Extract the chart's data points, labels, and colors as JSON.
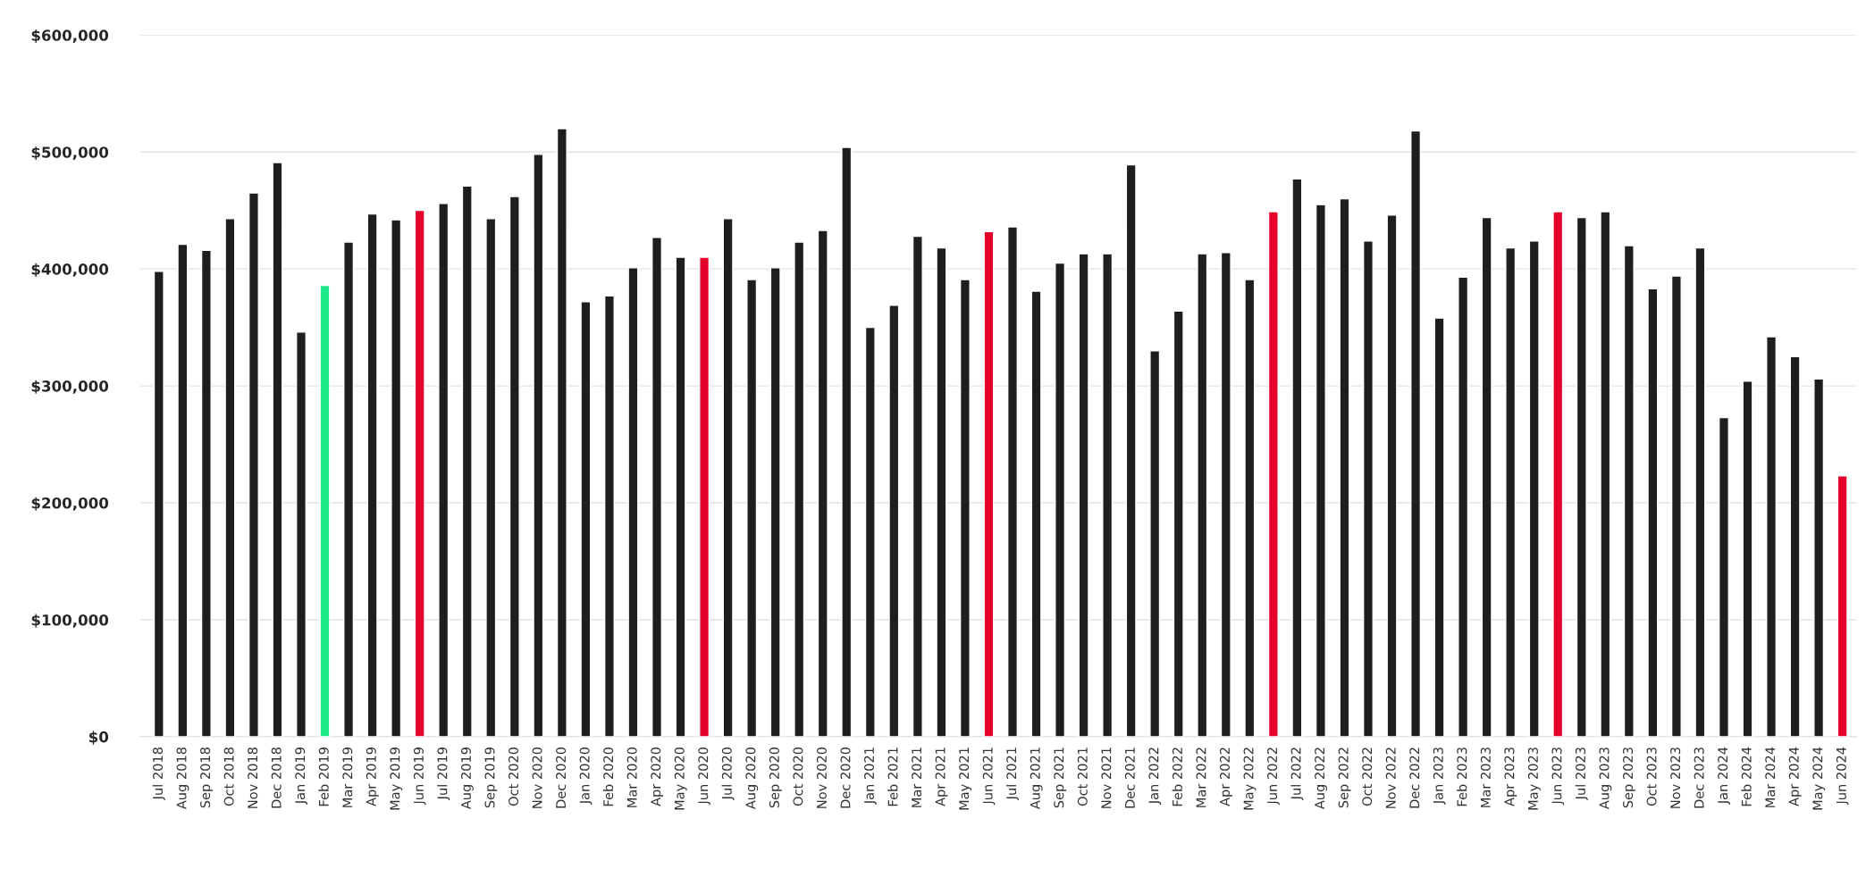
{
  "chart_data": {
    "type": "bar",
    "categories": [
      "Jul 2018",
      "Aug 2018",
      "Sep 2018",
      "Oct 2018",
      "Nov 2018",
      "Dec 2018",
      "Jan 2019",
      "Feb 2019",
      "Mar 2019",
      "Apr 2019",
      "May 2019",
      "Jun 2019",
      "Jul 2019",
      "Aug 2019",
      "Sep 2019",
      "Oct 2020",
      "Nov 2020",
      "Dec 2020",
      "Jan 2020",
      "Feb 2020",
      "Mar 2020",
      "Apr 2020",
      "May 2020",
      "Jun 2020",
      "Jul 2020",
      "Aug 2020",
      "Sep 2020",
      "Oct 2020",
      "Nov 2020",
      "Dec 2020",
      "Jan 2021",
      "Feb 2021",
      "Mar 2021",
      "Apr 2021",
      "May 2021",
      "Jun 2021",
      "Jul 2021",
      "Aug 2021",
      "Sep 2021",
      "Oct 2021",
      "Nov 2021",
      "Dec 2021",
      "Jan 2022",
      "Feb 2022",
      "Mar 2022",
      "Apr 2022",
      "May 2022",
      "Jun 2022",
      "Jul 2022",
      "Aug 2022",
      "Sep 2022",
      "Oct 2022",
      "Nov 2022",
      "Dec 2022",
      "Jan 2023",
      "Feb 2023",
      "Mar 2023",
      "Apr 2023",
      "May 2023",
      "Jun 2023",
      "Jul 2023",
      "Aug 2023",
      "Sep 2023",
      "Oct 2023",
      "Nov 2023",
      "Dec 2023",
      "Jan 2024",
      "Feb 2024",
      "Mar 2024",
      "Apr 2024",
      "May 2024",
      "Jun 2024"
    ],
    "values": [
      398000,
      421000,
      416000,
      443000,
      465000,
      491000,
      346000,
      386000,
      423000,
      447000,
      442000,
      450000,
      456000,
      471000,
      443000,
      462000,
      498000,
      520000,
      372000,
      377000,
      401000,
      427000,
      410000,
      410000,
      443000,
      391000,
      401000,
      423000,
      433000,
      504000,
      350000,
      369000,
      428000,
      418000,
      391000,
      432000,
      436000,
      381000,
      405000,
      413000,
      413000,
      489000,
      330000,
      364000,
      413000,
      414000,
      391000,
      449000,
      477000,
      455000,
      460000,
      424000,
      446000,
      518000,
      358000,
      393000,
      444000,
      418000,
      424000,
      449000,
      444000,
      449000,
      420000,
      383000,
      394000,
      418000,
      273000,
      304000,
      342000,
      325000,
      306000,
      223000
    ],
    "colors": [
      "#1e1e1e",
      "#1e1e1e",
      "#1e1e1e",
      "#1e1e1e",
      "#1e1e1e",
      "#1e1e1e",
      "#1e1e1e",
      "#1de989",
      "#1e1e1e",
      "#1e1e1e",
      "#1e1e1e",
      "#e4002b",
      "#1e1e1e",
      "#1e1e1e",
      "#1e1e1e",
      "#1e1e1e",
      "#1e1e1e",
      "#1e1e1e",
      "#1e1e1e",
      "#1e1e1e",
      "#1e1e1e",
      "#1e1e1e",
      "#1e1e1e",
      "#e4002b",
      "#1e1e1e",
      "#1e1e1e",
      "#1e1e1e",
      "#1e1e1e",
      "#1e1e1e",
      "#1e1e1e",
      "#1e1e1e",
      "#1e1e1e",
      "#1e1e1e",
      "#1e1e1e",
      "#1e1e1e",
      "#e4002b",
      "#1e1e1e",
      "#1e1e1e",
      "#1e1e1e",
      "#1e1e1e",
      "#1e1e1e",
      "#1e1e1e",
      "#1e1e1e",
      "#1e1e1e",
      "#1e1e1e",
      "#1e1e1e",
      "#1e1e1e",
      "#e4002b",
      "#1e1e1e",
      "#1e1e1e",
      "#1e1e1e",
      "#1e1e1e",
      "#1e1e1e",
      "#1e1e1e",
      "#1e1e1e",
      "#1e1e1e",
      "#1e1e1e",
      "#1e1e1e",
      "#1e1e1e",
      "#e4002b",
      "#1e1e1e",
      "#1e1e1e",
      "#1e1e1e",
      "#1e1e1e",
      "#1e1e1e",
      "#1e1e1e",
      "#1e1e1e",
      "#1e1e1e",
      "#1e1e1e",
      "#1e1e1e",
      "#1e1e1e",
      "#e4002b"
    ],
    "ylim": [
      0,
      600000
    ],
    "yticks": [
      {
        "value": 0,
        "label": "$0"
      },
      {
        "value": 100000,
        "label": "$100,000"
      },
      {
        "value": 200000,
        "label": "$200,000"
      },
      {
        "value": 300000,
        "label": "$300,000"
      },
      {
        "value": 400000,
        "label": "$400,000"
      },
      {
        "value": 500000,
        "label": "$500,000"
      },
      {
        "value": 600000,
        "label": "$600,000"
      }
    ],
    "grid": "y"
  }
}
